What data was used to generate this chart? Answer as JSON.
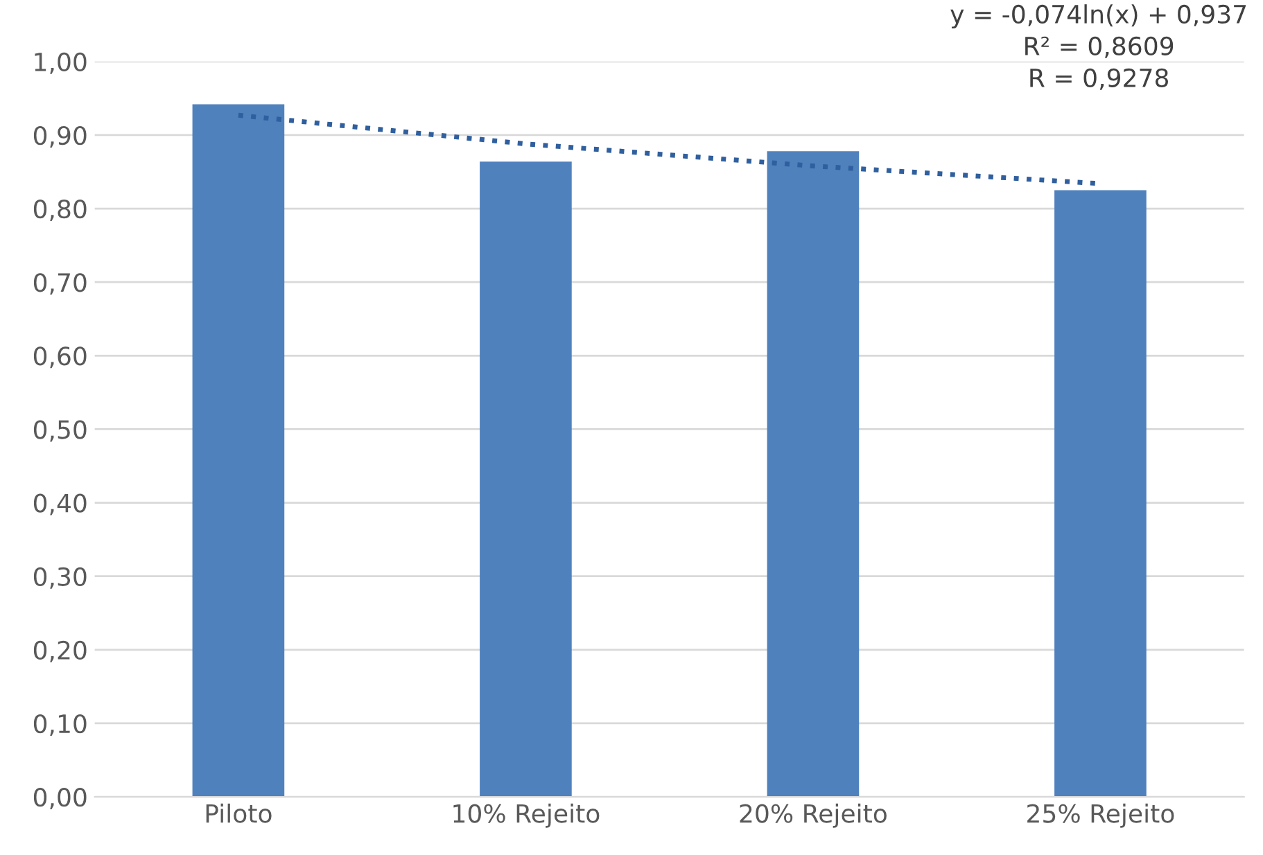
{
  "chart_data": {
    "type": "bar",
    "categories": [
      "Piloto",
      "10% Rejeito",
      "20% Rejeito",
      "25% Rejeito"
    ],
    "series": [
      {
        "color": "#4f81bd",
        "values": [
          0.942,
          0.864,
          0.878,
          0.825
        ]
      },
      {
        "type": "line",
        "color": "#2f5f9e",
        "line_style": "dotted",
        "values": [
          0.927,
          0.888,
          0.858,
          0.834
        ]
      }
    ],
    "ylim": [
      0,
      1.0
    ],
    "yticks": [
      {
        "value": 0,
        "label": "0,00"
      },
      {
        "value": 0.1,
        "label": "0,10"
      },
      {
        "value": 0.2,
        "label": "0,20"
      },
      {
        "value": 0.3,
        "label": "0,30"
      },
      {
        "value": 0.4,
        "label": "0,40"
      },
      {
        "value": 0.5,
        "label": "0,50"
      },
      {
        "value": 0.6,
        "label": "0,60"
      },
      {
        "value": 0.7,
        "label": "0,70"
      },
      {
        "value": 0.8,
        "label": "0,80"
      },
      {
        "value": 0.9,
        "label": "0,90"
      },
      {
        "value": 1.0,
        "label": "1,00"
      }
    ],
    "grid": "y",
    "annotations": [
      "y = -0,074ln(x) + 0,937\nR² = 0,8609\nR = 0,9278"
    ]
  }
}
